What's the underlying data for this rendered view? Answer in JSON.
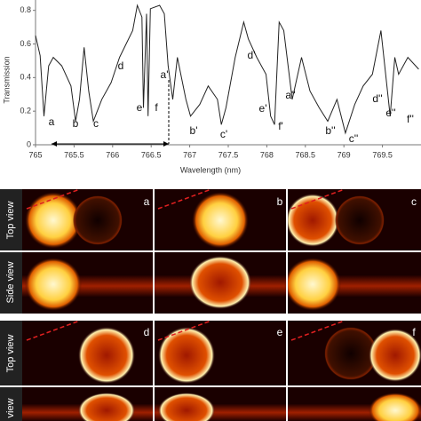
{
  "chart_data": {
    "type": "line",
    "xlabel": "Wavelength (nm)",
    "ylabel": "Transmission",
    "x": [
      765.0,
      765.06,
      765.11,
      765.17,
      765.23,
      765.34,
      765.46,
      765.52,
      765.57,
      765.63,
      765.69,
      765.75,
      765.86,
      765.98,
      766.09,
      766.26,
      766.32,
      766.38,
      766.4,
      766.44,
      766.46,
      766.49,
      766.61,
      766.67,
      766.72,
      766.78,
      766.84,
      766.95,
      767.01,
      767.13,
      767.24,
      767.36,
      767.41,
      767.47,
      767.59,
      767.7,
      767.76,
      767.87,
      767.99,
      768.05,
      768.1,
      768.16,
      768.22,
      768.33,
      768.45,
      768.56,
      768.68,
      768.79,
      768.91,
      769.02,
      769.14,
      769.25,
      769.37,
      769.48,
      769.6,
      769.66,
      769.71,
      769.83,
      769.97
    ],
    "series": [
      {
        "color": "#222222",
        "values": [
          0.65,
          0.53,
          0.17,
          0.47,
          0.52,
          0.47,
          0.35,
          0.14,
          0.27,
          0.58,
          0.32,
          0.14,
          0.27,
          0.37,
          0.52,
          0.68,
          0.83,
          0.76,
          0.22,
          0.78,
          0.17,
          0.81,
          0.83,
          0.78,
          0.47,
          0.27,
          0.52,
          0.27,
          0.17,
          0.24,
          0.35,
          0.27,
          0.12,
          0.22,
          0.52,
          0.73,
          0.63,
          0.52,
          0.42,
          0.17,
          0.12,
          0.73,
          0.68,
          0.27,
          0.52,
          0.32,
          0.22,
          0.14,
          0.27,
          0.07,
          0.24,
          0.35,
          0.42,
          0.68,
          0.17,
          0.52,
          0.42,
          0.52,
          0.45
        ]
      }
    ],
    "xlim": [
      765,
      770
    ],
    "ylim": [
      0,
      0.83
    ],
    "xticks": [
      765,
      765.5,
      766,
      766.5,
      767,
      767.5,
      768,
      768.5,
      769,
      769.5
    ],
    "yticks": [
      0,
      0.2,
      0.4,
      0.6,
      0.8
    ],
    "annotations": [
      "a",
      "b",
      "c",
      "d",
      "e",
      "f",
      "a'",
      "b'",
      "c'",
      "d'",
      "e'",
      "f'",
      "a''",
      "b''",
      "c''",
      "d''",
      "e''",
      "f''"
    ]
  },
  "panels": {
    "row_labels": [
      "Top view",
      "Side view",
      "Top view",
      "Side view"
    ],
    "letters": [
      "a",
      "b",
      "c",
      "d",
      "e",
      "f"
    ]
  }
}
